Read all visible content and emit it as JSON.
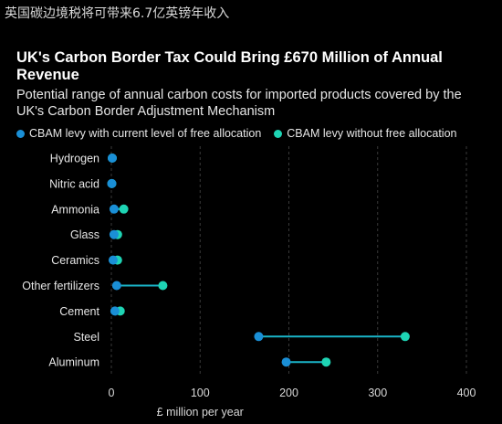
{
  "caption": "英国碳边境税将可带来6.7亿英镑年收入",
  "chart_data": {
    "type": "dumbbell",
    "title": "UK's Carbon Border Tax Could Bring £670 Million of Annual Revenue",
    "subtitle": "Potential range of annual carbon costs for imported products covered by the UK's Carbon Border Adjustment Mechanism",
    "xlabel": "£ million per year",
    "ylabel": "",
    "xlim": [
      0,
      400
    ],
    "x_ticks": [
      0,
      100,
      200,
      300,
      400
    ],
    "grid": true,
    "legend_position": "top",
    "categories": [
      "Hydrogen",
      "Nitric acid",
      "Ammonia",
      "Glass",
      "Ceramics",
      "Other fertilizers",
      "Cement",
      "Steel",
      "Aluminum"
    ],
    "series": [
      {
        "name": "CBAM levy with current level of free allocation",
        "color": "#1a8fd6",
        "values": [
          1,
          0.5,
          3,
          3,
          2,
          6,
          4,
          166,
          197
        ]
      },
      {
        "name": "CBAM levy without free allocation",
        "color": "#1ed4b4",
        "values": [
          1,
          0.5,
          14,
          7,
          7,
          58,
          10,
          331,
          242
        ]
      }
    ],
    "connector_color": "#1ab4c8"
  }
}
